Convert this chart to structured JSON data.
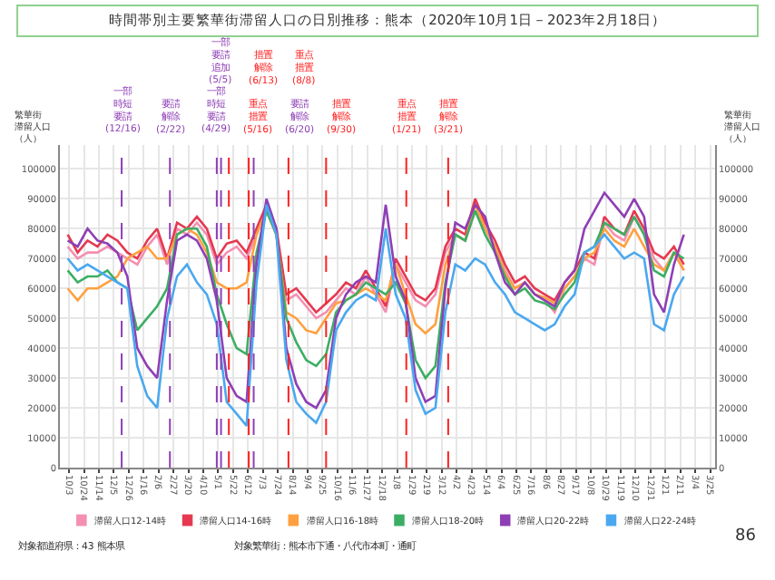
{
  "chart_data": {
    "type": "line",
    "title": "時間帯別主要繁華街滞留人口の日別推移：熊本（2020年10月1日－2023年2月18日）",
    "ylabel": "繁華街滞留人口（人）",
    "y2label": "繁華街滞留人口（人）",
    "x": [
      "2020-10-01",
      "2020-10-15",
      "2020-10-29",
      "2020-11-12",
      "2020-11-26",
      "2020-12-10",
      "2020-12-24",
      "2021-01-07",
      "2021-01-21",
      "2021-02-04",
      "2021-02-18",
      "2021-03-04",
      "2021-03-18",
      "2021-04-01",
      "2021-04-15",
      "2021-04-29",
      "2021-05-13",
      "2021-05-27",
      "2021-06-10",
      "2021-06-24",
      "2021-07-08",
      "2021-07-22",
      "2021-08-05",
      "2021-08-19",
      "2021-09-02",
      "2021-09-16",
      "2021-09-30",
      "2021-10-14",
      "2021-10-28",
      "2021-11-11",
      "2021-11-25",
      "2021-12-09",
      "2021-12-23",
      "2022-01-06",
      "2022-01-20",
      "2022-02-03",
      "2022-02-17",
      "2022-03-03",
      "2022-03-17",
      "2022-03-31",
      "2022-04-14",
      "2022-04-28",
      "2022-05-12",
      "2022-05-26",
      "2022-06-09",
      "2022-06-23",
      "2022-07-07",
      "2022-07-21",
      "2022-08-04",
      "2022-08-18",
      "2022-09-01",
      "2022-09-15",
      "2022-09-29",
      "2022-10-13",
      "2022-10-27",
      "2022-11-10",
      "2022-11-24",
      "2022-12-08",
      "2022-12-22",
      "2023-01-05",
      "2023-01-19",
      "2023-02-02",
      "2023-02-16"
    ],
    "series": [
      {
        "name": "滞留人口12-14時",
        "color": "#f48fb1",
        "values": [
          74000,
          70000,
          72000,
          72000,
          74000,
          72000,
          70000,
          68000,
          74000,
          78000,
          68000,
          80000,
          78000,
          82000,
          78000,
          68000,
          72000,
          74000,
          70000,
          78000,
          86000,
          78000,
          56000,
          58000,
          54000,
          50000,
          52000,
          56000,
          60000,
          58000,
          64000,
          58000,
          52000,
          68000,
          62000,
          56000,
          54000,
          58000,
          72000,
          78000,
          76000,
          86000,
          80000,
          74000,
          66000,
          60000,
          62000,
          58000,
          56000,
          52000,
          60000,
          64000,
          70000,
          68000,
          82000,
          78000,
          76000,
          84000,
          78000,
          70000,
          66000,
          72000,
          66000
        ]
      },
      {
        "name": "滞留人口14-16時",
        "color": "#e53950",
        "values": [
          78000,
          72000,
          76000,
          74000,
          78000,
          76000,
          72000,
          70000,
          76000,
          80000,
          70000,
          82000,
          80000,
          84000,
          80000,
          70000,
          75000,
          76000,
          72000,
          80000,
          88000,
          80000,
          58000,
          60000,
          56000,
          52000,
          55000,
          58000,
          62000,
          60000,
          66000,
          60000,
          54000,
          70000,
          64000,
          58000,
          56000,
          60000,
          74000,
          80000,
          78000,
          90000,
          82000,
          76000,
          68000,
          62000,
          64000,
          60000,
          58000,
          56000,
          62000,
          66000,
          72000,
          70000,
          84000,
          80000,
          78000,
          86000,
          80000,
          72000,
          70000,
          74000,
          68000
        ]
      },
      {
        "name": "滞留人口16-18時",
        "color": "#ffa040",
        "values": [
          60000,
          56000,
          60000,
          60000,
          62000,
          64000,
          70000,
          72000,
          74000,
          70000,
          70000,
          78000,
          80000,
          78000,
          72000,
          62000,
          60000,
          60000,
          62000,
          78000,
          86000,
          78000,
          52000,
          50000,
          46000,
          45000,
          50000,
          55000,
          56000,
          58000,
          60000,
          58000,
          56000,
          68000,
          58000,
          48000,
          45000,
          48000,
          68000,
          78000,
          76000,
          88000,
          80000,
          74000,
          65000,
          60000,
          62000,
          58000,
          57000,
          55000,
          60000,
          64000,
          70000,
          72000,
          80000,
          76000,
          74000,
          80000,
          74000,
          68000,
          66000,
          72000,
          66000
        ]
      },
      {
        "name": "滞留人口18-20時",
        "color": "#3cae64",
        "values": [
          66000,
          62000,
          64000,
          64000,
          66000,
          62000,
          60000,
          46000,
          50000,
          54000,
          60000,
          78000,
          80000,
          80000,
          74000,
          58000,
          48000,
          40000,
          38000,
          72000,
          86000,
          78000,
          50000,
          42000,
          36000,
          34000,
          38000,
          52000,
          56000,
          58000,
          62000,
          60000,
          58000,
          62000,
          55000,
          36000,
          30000,
          34000,
          62000,
          78000,
          76000,
          86000,
          78000,
          72000,
          64000,
          58000,
          60000,
          56000,
          55000,
          53000,
          58000,
          62000,
          72000,
          74000,
          82000,
          80000,
          78000,
          84000,
          78000,
          66000,
          64000,
          72000,
          70000
        ]
      },
      {
        "name": "滞留人口20-22時",
        "color": "#8e3fb5",
        "values": [
          76000,
          74000,
          80000,
          76000,
          75000,
          72000,
          64000,
          40000,
          34000,
          30000,
          56000,
          76000,
          78000,
          76000,
          70000,
          56000,
          30000,
          24000,
          22000,
          68000,
          90000,
          80000,
          40000,
          28000,
          22000,
          20000,
          26000,
          50000,
          58000,
          62000,
          64000,
          62000,
          88000,
          64000,
          56000,
          30000,
          22000,
          24000,
          60000,
          82000,
          80000,
          88000,
          84000,
          72000,
          62000,
          58000,
          62000,
          58000,
          56000,
          54000,
          62000,
          66000,
          80000,
          86000,
          92000,
          88000,
          84000,
          90000,
          84000,
          58000,
          52000,
          68000,
          78000
        ]
      },
      {
        "name": "滞留人口22-24時",
        "color": "#4aa8f0",
        "values": [
          70000,
          66000,
          68000,
          66000,
          64000,
          62000,
          60000,
          34000,
          24000,
          20000,
          50000,
          64000,
          68000,
          62000,
          58000,
          48000,
          22000,
          18000,
          14000,
          62000,
          88000,
          78000,
          36000,
          22000,
          18000,
          15000,
          22000,
          46000,
          52000,
          56000,
          58000,
          56000,
          80000,
          58000,
          50000,
          26000,
          18000,
          20000,
          52000,
          68000,
          66000,
          70000,
          68000,
          62000,
          58000,
          52000,
          50000,
          48000,
          46000,
          48000,
          54000,
          58000,
          72000,
          74000,
          78000,
          74000,
          70000,
          72000,
          70000,
          48000,
          46000,
          58000,
          64000
        ]
      }
    ],
    "ylim": [
      0,
      108000
    ],
    "yticks": [
      0,
      10000,
      20000,
      30000,
      40000,
      50000,
      60000,
      70000,
      80000,
      90000,
      100000
    ],
    "y2lim": [
      0,
      108000
    ],
    "y2ticks": [
      0,
      10000,
      20000,
      30000,
      40000,
      50000,
      60000,
      70000,
      80000,
      90000,
      100000
    ],
    "xlim": [
      "2020-09-20",
      "2023-04-01"
    ],
    "xticks": [
      {
        "value": "2020-10-03",
        "label": "10/3"
      },
      {
        "value": "2020-10-24",
        "label": "10/24"
      },
      {
        "value": "2020-11-14",
        "label": "11/14"
      },
      {
        "value": "2020-12-05",
        "label": "12/5"
      },
      {
        "value": "2020-12-26",
        "label": "12/26"
      },
      {
        "value": "2021-01-16",
        "label": "1/16"
      },
      {
        "value": "2021-02-06",
        "label": "2/6"
      },
      {
        "value": "2021-02-27",
        "label": "2/27"
      },
      {
        "value": "2021-03-20",
        "label": "3/20"
      },
      {
        "value": "2021-04-10",
        "label": "4/10"
      },
      {
        "value": "2021-05-01",
        "label": "5/1"
      },
      {
        "value": "2021-05-22",
        "label": "5/22"
      },
      {
        "value": "2021-06-12",
        "label": "6/12"
      },
      {
        "value": "2021-07-03",
        "label": "7/3"
      },
      {
        "value": "2021-07-24",
        "label": "7/24"
      },
      {
        "value": "2021-08-14",
        "label": "8/14"
      },
      {
        "value": "2021-09-04",
        "label": "9/4"
      },
      {
        "value": "2021-09-25",
        "label": "9/25"
      },
      {
        "value": "2021-10-16",
        "label": "10/16"
      },
      {
        "value": "2021-11-06",
        "label": "11/6"
      },
      {
        "value": "2021-11-27",
        "label": "11/27"
      },
      {
        "value": "2021-12-18",
        "label": "12/18"
      },
      {
        "value": "2022-01-08",
        "label": "1/8"
      },
      {
        "value": "2022-01-29",
        "label": "1/29"
      },
      {
        "value": "2022-02-19",
        "label": "2/19"
      },
      {
        "value": "2022-03-12",
        "label": "3/12"
      },
      {
        "value": "2022-04-02",
        "label": "4/2"
      },
      {
        "value": "2022-04-23",
        "label": "4/23"
      },
      {
        "value": "2022-05-14",
        "label": "5/14"
      },
      {
        "value": "2022-06-04",
        "label": "6/4"
      },
      {
        "value": "2022-06-25",
        "label": "6/25"
      },
      {
        "value": "2022-07-16",
        "label": "7/16"
      },
      {
        "value": "2022-08-06",
        "label": "8/6"
      },
      {
        "value": "2022-08-27",
        "label": "8/27"
      },
      {
        "value": "2022-09-17",
        "label": "9/17"
      },
      {
        "value": "2022-10-08",
        "label": "10/8"
      },
      {
        "value": "2022-10-29",
        "label": "10/29"
      },
      {
        "value": "2022-11-19",
        "label": "11/19"
      },
      {
        "value": "2022-12-10",
        "label": "12/10"
      },
      {
        "value": "2022-12-31",
        "label": "12/31"
      },
      {
        "value": "2023-01-21",
        "label": "1/21"
      },
      {
        "value": "2023-02-11",
        "label": "2/11"
      },
      {
        "value": "2023-03-04",
        "label": "3/4"
      },
      {
        "value": "2023-03-25",
        "label": "3/25"
      }
    ],
    "ref_lines": [
      {
        "axis": "x",
        "value": "2020-12-16",
        "label": "一部時短要請(12/16)",
        "color": "#8e3fb5",
        "line_style": "dashed"
      },
      {
        "axis": "x",
        "value": "2021-02-22",
        "label": "要請解除(2/22)",
        "color": "#8e3fb5",
        "line_style": "dashed"
      },
      {
        "axis": "x",
        "value": "2021-04-29",
        "label": "一部時短要請(4/29)",
        "color": "#8e3fb5",
        "line_style": "dashed"
      },
      {
        "axis": "x",
        "value": "2021-05-05",
        "label": "一部要請追加(5/5)",
        "color": "#8e3fb5",
        "line_style": "dashed"
      },
      {
        "axis": "x",
        "value": "2021-05-16",
        "label": "重点措置(5/16)",
        "color": "#ff2020",
        "line_style": "dashed"
      },
      {
        "axis": "x",
        "value": "2021-06-13",
        "label": "措置解除(6/13)",
        "color": "#ff2020",
        "line_style": "dashed"
      },
      {
        "axis": "x",
        "value": "2021-06-20",
        "label": "要請解除(6/20)",
        "color": "#8e3fb5",
        "line_style": "dashed"
      },
      {
        "axis": "x",
        "value": "2021-08-08",
        "label": "重点措置(8/8)",
        "color": "#ff2020",
        "line_style": "dashed"
      },
      {
        "axis": "x",
        "value": "2021-09-30",
        "label": "措置解除(9/30)",
        "color": "#ff2020",
        "line_style": "dashed"
      },
      {
        "axis": "x",
        "value": "2022-01-21",
        "label": "重点措置(1/21)",
        "color": "#ff2020",
        "line_style": "dashed"
      },
      {
        "axis": "x",
        "value": "2022-03-21",
        "label": "措置解除(3/21)",
        "color": "#ff2020",
        "line_style": "dashed"
      }
    ],
    "annotations": [
      "対象都道府県：43 熊本県",
      "対象繁華街：熊本市下通・八代市本町・通町",
      "86"
    ],
    "grid": true,
    "legend": "bottom",
    "marker": "none",
    "line_style": "solid"
  }
}
